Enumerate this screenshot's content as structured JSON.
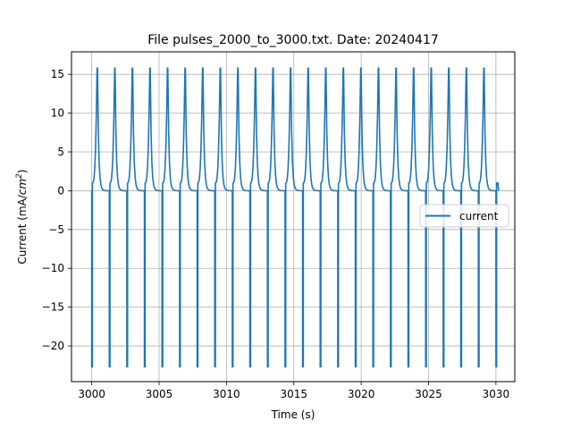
{
  "chart_data": {
    "type": "line",
    "title": "File pulses_2000_to_3000.txt. Date: 20240417",
    "xlabel": "Time (s)",
    "ylabel_prefix": "Current (mA/",
    "ylabel_unit_base": "cm",
    "ylabel_unit_exp": "2",
    "ylabel_suffix": ")",
    "xlim": [
      2998.5,
      3031.4
    ],
    "ylim": [
      -24.6,
      17.9
    ],
    "xticks": [
      3000,
      3005,
      3010,
      3015,
      3020,
      3025,
      3030
    ],
    "yticks": [
      -20,
      -15,
      -10,
      -5,
      0,
      5,
      10,
      15
    ],
    "grid": true,
    "legend": {
      "placement": "center-right",
      "entries": [
        "current"
      ]
    },
    "series": [
      {
        "name": "current",
        "color": "#1f77b4",
        "pulse_period": 1.29,
        "pulse_start": 3000.0,
        "pulse_end": 3030.0,
        "pulse_count": 24,
        "peak": 15.8,
        "trough": -22.7,
        "baseline": 0.0,
        "plateau": 1.0
      }
    ]
  }
}
